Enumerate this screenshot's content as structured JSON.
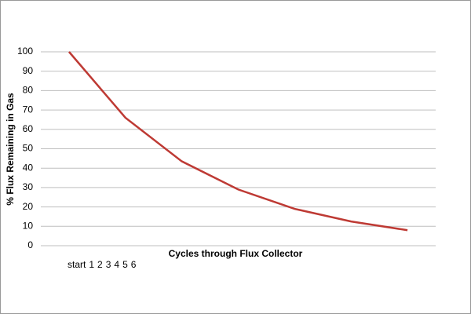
{
  "chart_data": {
    "type": "line",
    "x_label": "Cycles through Flux Collector",
    "y_label": "% Flux Remaining in Gas",
    "categories": [
      "start",
      "1",
      "2",
      "3",
      "4",
      "5",
      "6"
    ],
    "series": [
      {
        "name": "Flux",
        "color": "#be3a34",
        "values": [
          100,
          66,
          43.5,
          29,
          19,
          12.5,
          8
        ]
      }
    ],
    "ylim": [
      0,
      100
    ],
    "yticks": [
      0,
      10,
      20,
      30,
      40,
      50,
      60,
      70,
      80,
      90,
      100
    ],
    "grid": true
  }
}
